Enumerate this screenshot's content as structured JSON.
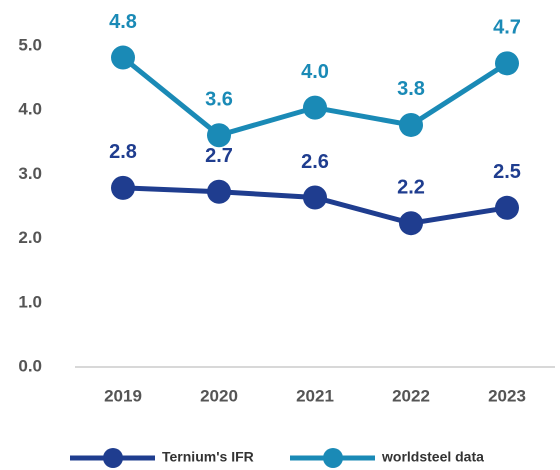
{
  "chart_data": {
    "type": "line",
    "categories": [
      "2019",
      "2020",
      "2021",
      "2022",
      "2023"
    ],
    "series": [
      {
        "name": "Ternium's IFR",
        "color": "#1f3d8f",
        "values": [
          2.79,
          2.73,
          2.64,
          2.24,
          2.48
        ],
        "value_labels": [
          "2.8",
          "2.7",
          "2.6",
          "2.2",
          "2.5"
        ]
      },
      {
        "name": "worldsteel data",
        "color": "#1a8ab6",
        "values": [
          4.82,
          3.61,
          4.04,
          3.77,
          4.73
        ],
        "value_labels": [
          "4.8",
          "3.6",
          "4.0",
          "3.8",
          "4.7"
        ]
      }
    ],
    "ylim": [
      0,
      5
    ],
    "yticks": [
      {
        "value": 0,
        "label": "0.0"
      },
      {
        "value": 1,
        "label": "1.0"
      },
      {
        "value": 2,
        "label": "2.0"
      },
      {
        "value": 3,
        "label": "3.0"
      },
      {
        "value": 4,
        "label": "4.0"
      },
      {
        "value": 5,
        "label": "5.0"
      }
    ],
    "grid": false,
    "legend": "bottom"
  }
}
